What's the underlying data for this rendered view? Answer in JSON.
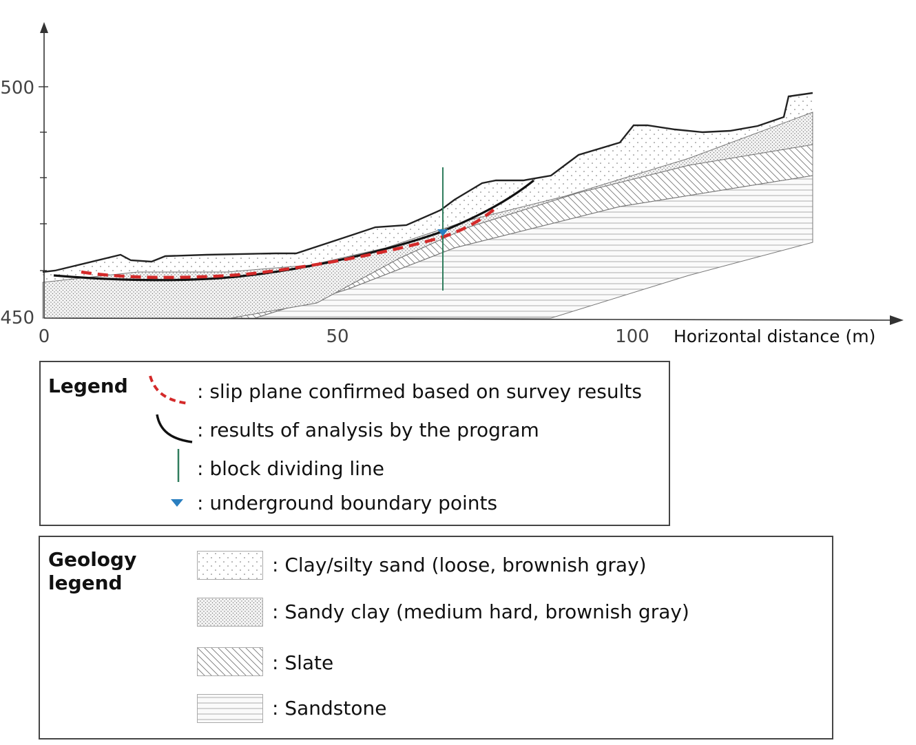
{
  "axes": {
    "y_ticks": [
      "500",
      "450"
    ],
    "x_ticks": [
      "0",
      "50",
      "100"
    ],
    "x_label": "Horizontal distance (m)"
  },
  "legend": {
    "title": "Legend",
    "items": [
      {
        "symbol": "red-dashed-curve",
        "label": ": slip plane confirmed based on survey results"
      },
      {
        "symbol": "black-solid-curve",
        "label": ": results of analysis by the program"
      },
      {
        "symbol": "green-vertical-line",
        "label": ": block dividing line"
      },
      {
        "symbol": "blue-triangle",
        "label": ": underground boundary points"
      }
    ]
  },
  "geology_legend": {
    "title_line1": "Geology",
    "title_line2": "legend",
    "items": [
      {
        "pattern": "dots",
        "label": ": Clay/silty sand (loose, brownish gray)"
      },
      {
        "pattern": "dense-dots",
        "label": ": Sandy clay (medium hard, brownish gray)"
      },
      {
        "pattern": "diagonal-hatch",
        "label": ": Slate"
      },
      {
        "pattern": "horizontal-lines",
        "label": ": Sandstone"
      }
    ]
  },
  "colors": {
    "slip_plane": "#d42a2a",
    "analysis_curve": "#111111",
    "block_line": "#2f7d5d",
    "boundary_point": "#2a7fc0"
  }
}
